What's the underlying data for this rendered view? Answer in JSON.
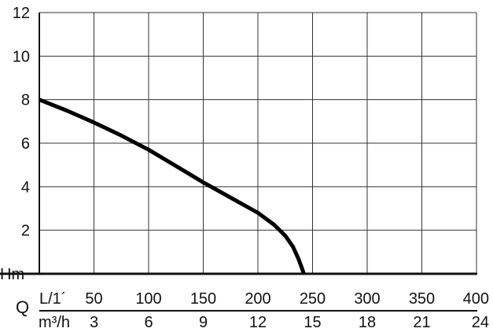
{
  "chart_data": {
    "type": "line",
    "title": "",
    "ylabel": "Hm",
    "y_ticks": [
      "2",
      "4",
      "6",
      "8",
      "10",
      "12"
    ],
    "ylim": [
      0,
      12
    ],
    "x_axis_label": "Q",
    "x_unit_primary": "L/1´",
    "x_unit_secondary": "m³/h",
    "x_ticks_primary": [
      "50",
      "100",
      "150",
      "200",
      "250",
      "300",
      "350",
      "400"
    ],
    "x_ticks_secondary": [
      "3",
      "6",
      "9",
      "12",
      "15",
      "18",
      "21",
      "24"
    ],
    "xlim": [
      0,
      400
    ],
    "grid": true,
    "series": [
      {
        "x": [
          0,
          25,
          50,
          75,
          100,
          125,
          150,
          175,
          200,
          215,
          225,
          232,
          237,
          240,
          242
        ],
        "y": [
          8.0,
          7.5,
          6.95,
          6.35,
          5.7,
          4.95,
          4.2,
          3.5,
          2.8,
          2.25,
          1.75,
          1.25,
          0.7,
          0.3,
          0.0
        ]
      }
    ]
  }
}
